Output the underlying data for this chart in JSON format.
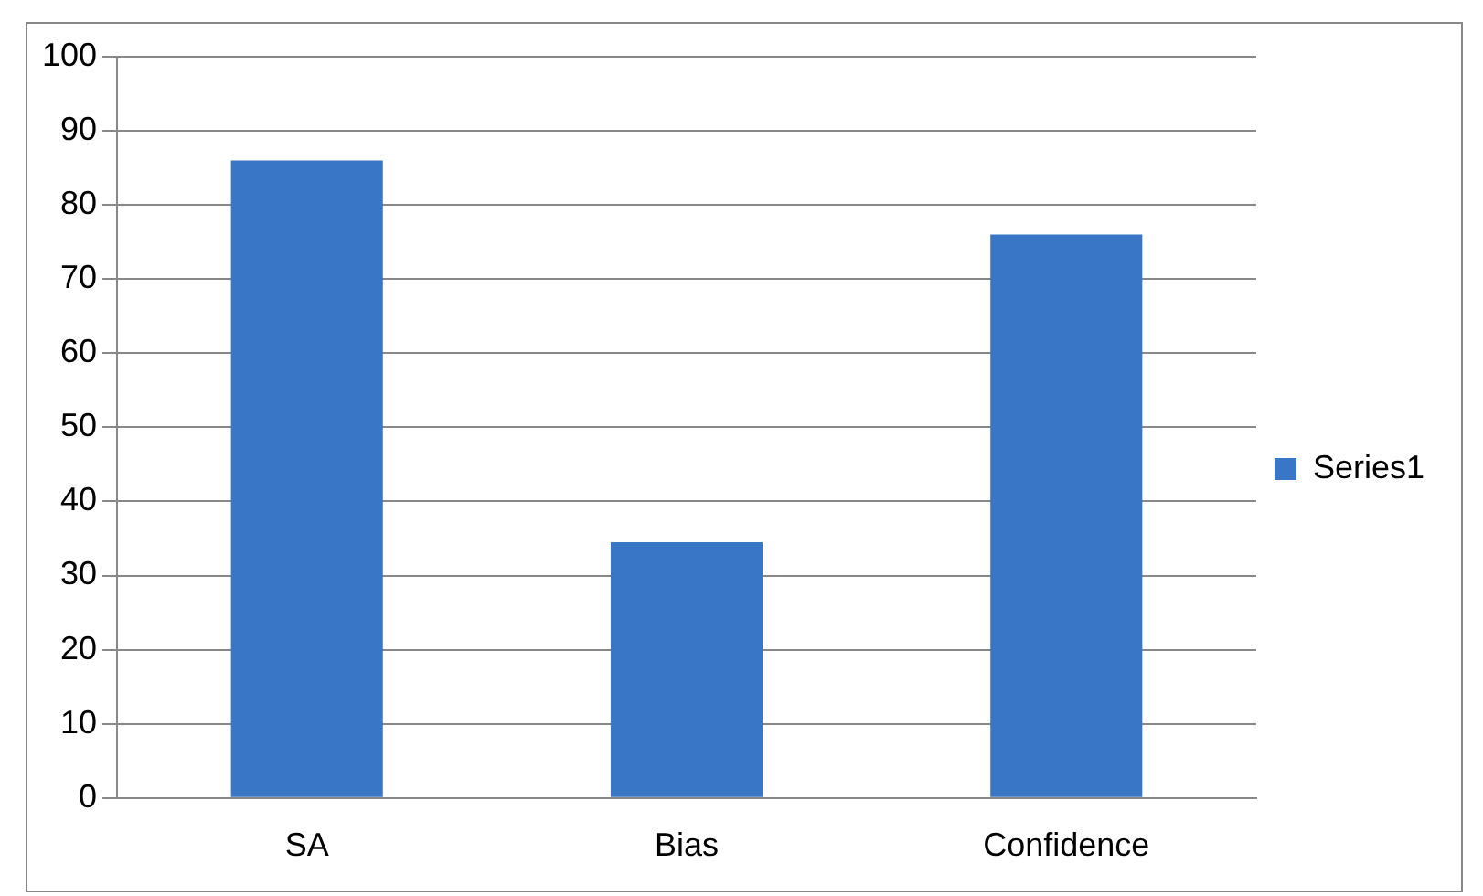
{
  "chart_data": {
    "type": "bar",
    "categories": [
      "SA",
      "Bias",
      "Confidence"
    ],
    "series": [
      {
        "name": "Series1",
        "color": "#3a76c6",
        "values": [
          86,
          34.5,
          76
        ]
      }
    ],
    "ylim": [
      0,
      100
    ],
    "yticks": [
      0,
      10,
      20,
      30,
      40,
      50,
      60,
      70,
      80,
      90,
      100
    ],
    "grid": "y",
    "legend": "right"
  }
}
